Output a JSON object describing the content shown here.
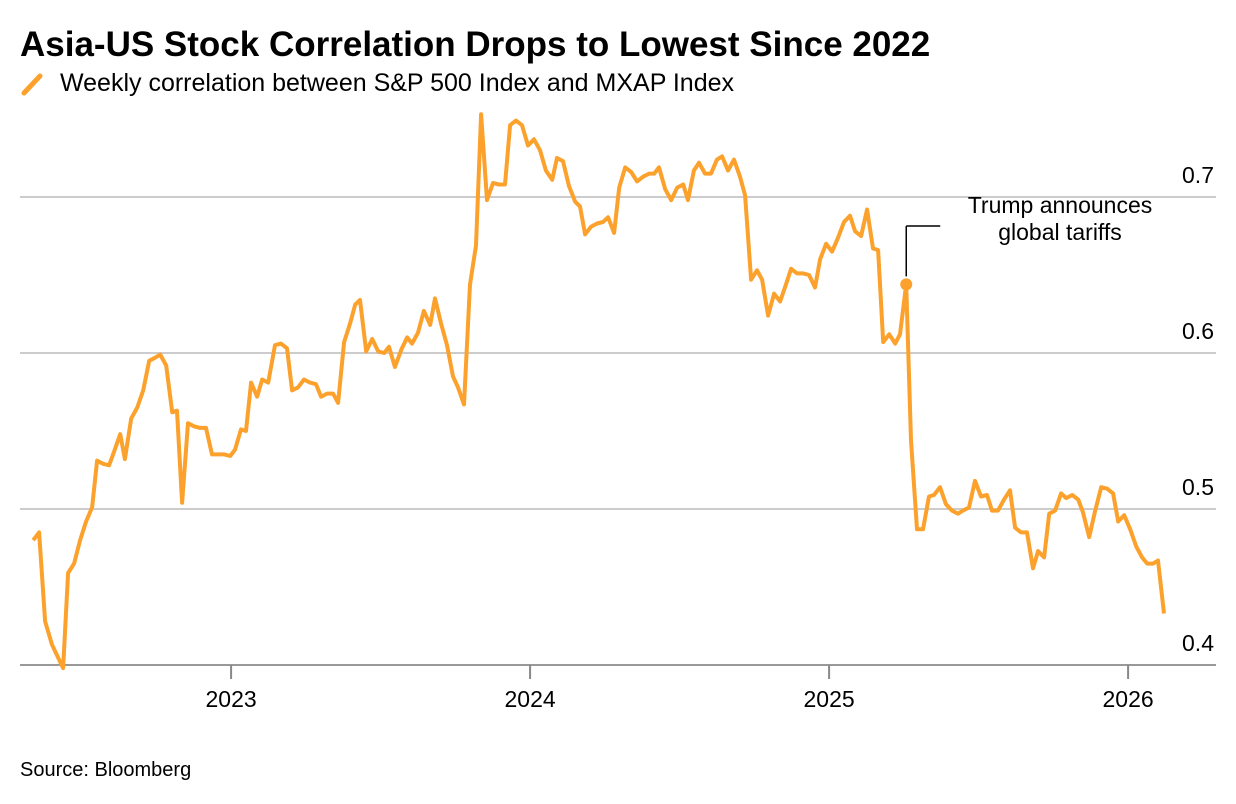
{
  "chart_data": {
    "type": "line",
    "title": "Asia-US Stock Correlation Drops to Lowest Since 2022",
    "source": "Source: Bloomberg",
    "xlim": [
      2022.294,
      2026.294
    ],
    "xticks": [
      2023,
      2024,
      2025,
      2026
    ],
    "ylim": [
      0.395,
      0.76
    ],
    "yticks": [
      0.4,
      0.5,
      0.6,
      0.7
    ],
    "grid": true,
    "x": [
      2022.338,
      2022.358,
      2022.378,
      2022.401,
      2022.438,
      2022.455,
      2022.475,
      2022.495,
      2022.515,
      2022.535,
      2022.552,
      2022.572,
      2022.592,
      2022.609,
      2022.629,
      2022.645,
      2022.666,
      2022.686,
      2022.706,
      2022.726,
      2022.746,
      2022.763,
      2022.783,
      2022.803,
      2022.819,
      2022.836,
      2022.856,
      2022.876,
      2022.896,
      2022.916,
      2022.936,
      2022.957,
      2022.977,
      2022.997,
      2023.013,
      2023.033,
      2023.05,
      2023.067,
      2023.087,
      2023.104,
      2023.124,
      2023.147,
      2023.167,
      2023.187,
      2023.204,
      2023.224,
      2023.244,
      2023.264,
      2023.284,
      2023.301,
      2023.321,
      2023.341,
      2023.358,
      2023.378,
      2023.398,
      2023.415,
      2023.431,
      2023.452,
      2023.472,
      2023.492,
      2023.512,
      2023.528,
      2023.548,
      2023.569,
      2023.589,
      2023.605,
      2023.625,
      2023.645,
      2023.666,
      2023.682,
      2023.702,
      2023.722,
      2023.742,
      2023.759,
      2023.779,
      2023.799,
      2023.819,
      2023.836,
      2023.856,
      2023.876,
      2023.896,
      2023.916,
      2023.933,
      2023.953,
      2023.973,
      2023.993,
      2024.013,
      2024.033,
      2024.053,
      2024.074,
      2024.09,
      2024.11,
      2024.13,
      2024.151,
      2024.167,
      2024.184,
      2024.204,
      2024.224,
      2024.244,
      2024.261,
      2024.281,
      2024.298,
      2024.318,
      2024.338,
      2024.358,
      2024.378,
      2024.398,
      2024.415,
      2024.431,
      2024.452,
      2024.472,
      2024.492,
      2024.512,
      2024.528,
      2024.548,
      2024.565,
      2024.585,
      2024.605,
      2024.625,
      2024.642,
      2024.662,
      2024.682,
      2024.702,
      2024.719,
      2024.739,
      2024.759,
      2024.776,
      2024.796,
      2024.816,
      2024.836,
      2024.856,
      2024.873,
      2024.893,
      2024.913,
      2024.933,
      2024.953,
      2024.97,
      2024.99,
      2025.01,
      2025.03,
      2025.05,
      2025.07,
      2025.087,
      2025.107,
      2025.127,
      2025.147,
      2025.164,
      2025.181,
      2025.201,
      2025.221,
      2025.237,
      2025.258,
      2025.274,
      2025.294,
      2025.314,
      2025.334,
      2025.351,
      2025.371,
      2025.391,
      2025.411,
      2025.431,
      2025.448,
      2025.468,
      2025.488,
      2025.508,
      2025.528,
      2025.545,
      2025.565,
      2025.585,
      2025.605,
      2025.622,
      2025.642,
      2025.662,
      2025.682,
      2025.699,
      2025.719,
      2025.736,
      2025.756,
      2025.776,
      2025.793,
      2025.813,
      2025.833,
      2025.849,
      2025.87,
      2025.89,
      2025.91,
      2025.93,
      2025.95,
      2025.967,
      2025.987,
      2026.007,
      2026.027,
      2026.047,
      2026.064,
      2026.084,
      2026.1,
      2026.12
    ],
    "series": [
      {
        "name": "Weekly correlation between S&P 500 Index and MXAP Index",
        "color": "#fba12c",
        "values": [
          0.48,
          0.485,
          0.428,
          0.413,
          0.398,
          0.459,
          0.465,
          0.48,
          0.492,
          0.501,
          0.531,
          0.529,
          0.528,
          0.537,
          0.548,
          0.532,
          0.558,
          0.565,
          0.576,
          0.595,
          0.597,
          0.599,
          0.592,
          0.562,
          0.563,
          0.504,
          0.555,
          0.553,
          0.552,
          0.552,
          0.535,
          0.535,
          0.535,
          0.534,
          0.538,
          0.551,
          0.55,
          0.581,
          0.572,
          0.583,
          0.581,
          0.605,
          0.606,
          0.603,
          0.576,
          0.578,
          0.583,
          0.581,
          0.58,
          0.572,
          0.574,
          0.574,
          0.568,
          0.607,
          0.619,
          0.631,
          0.634,
          0.601,
          0.609,
          0.601,
          0.6,
          0.604,
          0.591,
          0.602,
          0.61,
          0.606,
          0.613,
          0.627,
          0.618,
          0.635,
          0.619,
          0.605,
          0.585,
          0.578,
          0.567,
          0.644,
          0.669,
          0.753,
          0.698,
          0.709,
          0.708,
          0.708,
          0.746,
          0.749,
          0.746,
          0.733,
          0.737,
          0.73,
          0.717,
          0.711,
          0.725,
          0.723,
          0.707,
          0.697,
          0.694,
          0.676,
          0.681,
          0.683,
          0.684,
          0.687,
          0.677,
          0.706,
          0.719,
          0.716,
          0.71,
          0.713,
          0.715,
          0.715,
          0.719,
          0.705,
          0.698,
          0.706,
          0.708,
          0.698,
          0.717,
          0.722,
          0.715,
          0.715,
          0.724,
          0.726,
          0.717,
          0.724,
          0.713,
          0.701,
          0.647,
          0.653,
          0.647,
          0.624,
          0.638,
          0.633,
          0.644,
          0.654,
          0.651,
          0.651,
          0.65,
          0.642,
          0.66,
          0.67,
          0.665,
          0.674,
          0.684,
          0.688,
          0.678,
          0.675,
          0.692,
          0.667,
          0.666,
          0.607,
          0.612,
          0.606,
          0.612,
          0.644,
          0.544,
          0.487,
          0.487,
          0.508,
          0.509,
          0.514,
          0.503,
          0.499,
          0.497,
          0.499,
          0.501,
          0.518,
          0.508,
          0.509,
          0.499,
          0.499,
          0.506,
          0.512,
          0.488,
          0.485,
          0.485,
          0.462,
          0.473,
          0.469,
          0.497,
          0.499,
          0.51,
          0.507,
          0.509,
          0.506,
          0.498,
          0.482,
          0.499,
          0.514,
          0.513,
          0.51,
          0.492,
          0.496,
          0.487,
          0.476,
          0.469,
          0.465,
          0.465,
          0.467,
          0.433
        ]
      }
    ],
    "annotations": [
      {
        "lines": [
          "Trump announces",
          "global tariffs"
        ],
        "x": 2025.258
      }
    ]
  }
}
